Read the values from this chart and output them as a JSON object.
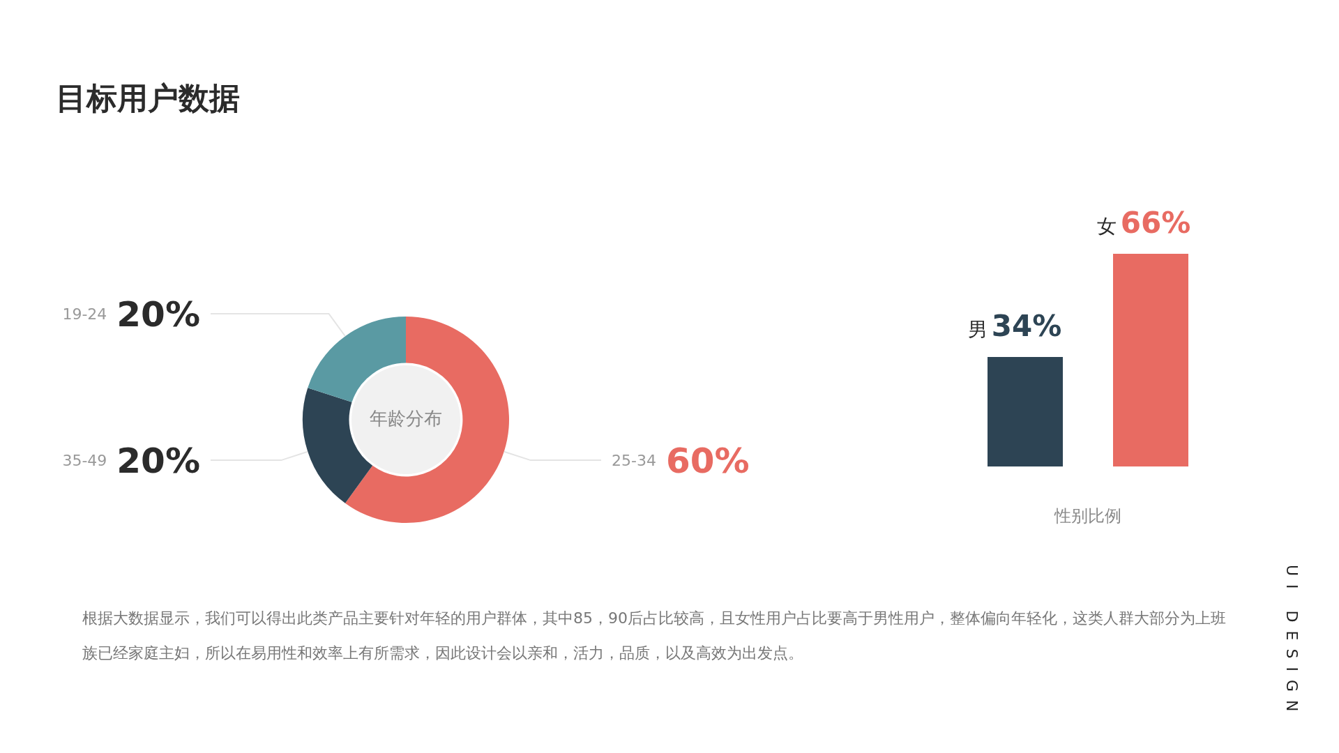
{
  "chart_data": [
    {
      "type": "donut",
      "title": "目标用户数据",
      "subtitle": "年龄分布",
      "categories": [
        "25-34",
        "35-49",
        "19-24"
      ],
      "values": [
        60,
        20,
        20
      ],
      "value_labels": [
        "60%",
        "20%",
        "20%"
      ],
      "colors": [
        "#e86b62",
        "#2d4454",
        "#5a9aa3"
      ],
      "legend": false,
      "annotations": [
        "根据大数据显示，我们可以得出此类产品主要针对年轻的用户群体，其中85，90后占比较高，且女性用户占比要高于男性用户，整体偏向年轻化，这类人群大部分为上班族已经家庭主妇，所以在易用性和效率上有所需求，因此设计会以亲和，活力，品质，以及高效为出发点。",
        "UI DESIGN"
      ]
    },
    {
      "type": "bar",
      "categories": [
        "男",
        "女"
      ],
      "colors": [
        "#2d4454",
        "#e86b62"
      ],
      "values": [
        34,
        66
      ],
      "value_labels": [
        "34%",
        "66%"
      ],
      "xlabel": "性别比例",
      "legend": false
    }
  ]
}
